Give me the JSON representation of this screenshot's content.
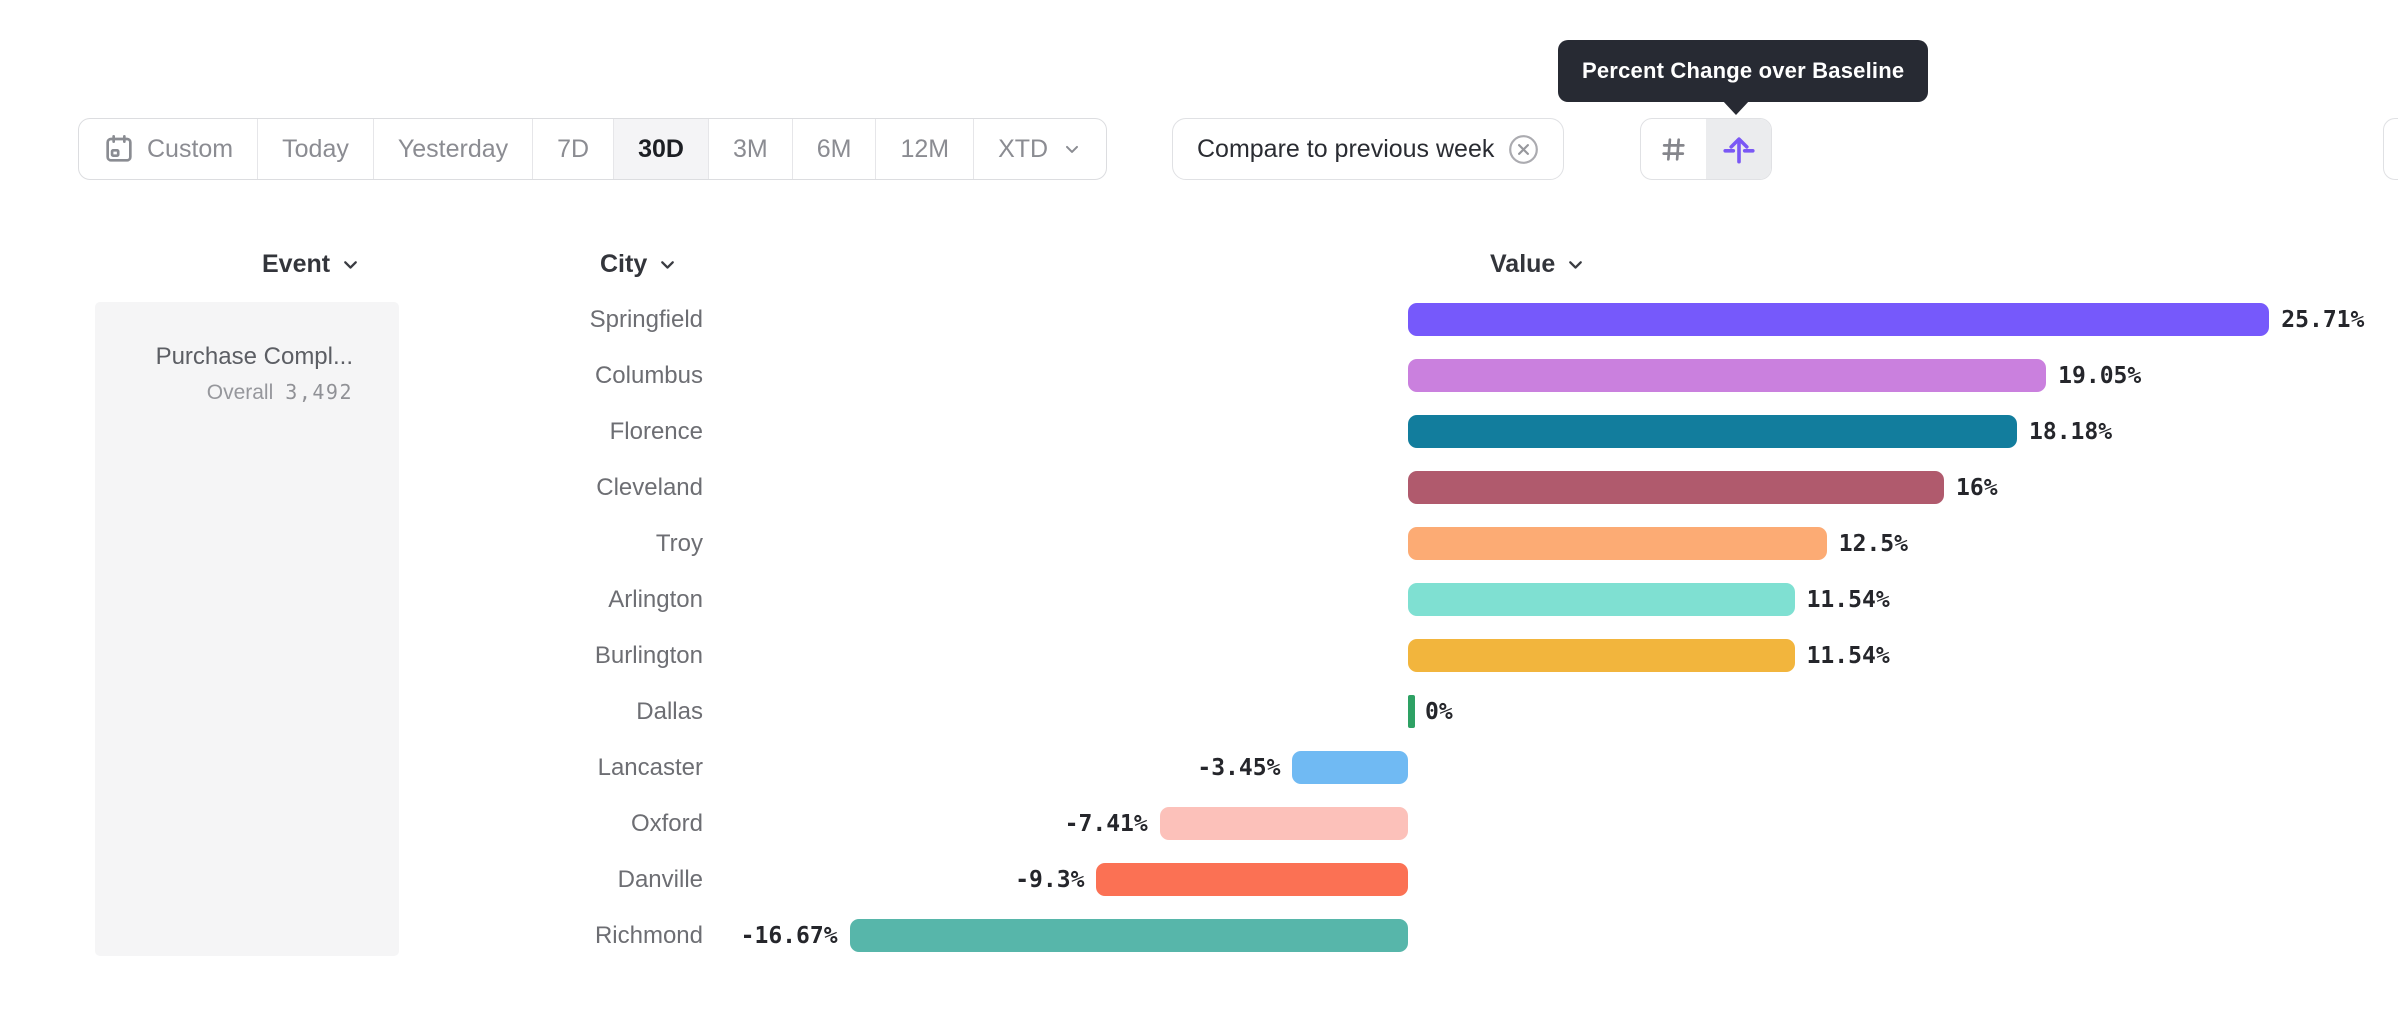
{
  "tooltip": {
    "text": "Percent Change over Baseline"
  },
  "toolbar": {
    "date_ranges": [
      {
        "label": "Custom",
        "selected": false,
        "icon": "calendar-icon"
      },
      {
        "label": "Today",
        "selected": false
      },
      {
        "label": "Yesterday",
        "selected": false
      },
      {
        "label": "7D",
        "selected": false
      },
      {
        "label": "30D",
        "selected": true
      },
      {
        "label": "3M",
        "selected": false
      },
      {
        "label": "6M",
        "selected": false
      },
      {
        "label": "12M",
        "selected": false
      },
      {
        "label": "XTD",
        "selected": false,
        "dropdown": true
      }
    ],
    "compare_label": "Compare to previous week",
    "view_toggle": {
      "options": [
        "grid-view",
        "sort-by-value"
      ],
      "active": "sort-by-value"
    }
  },
  "columns": {
    "event": "Event",
    "city": "City",
    "value": "Value"
  },
  "event_panel": {
    "title": "Purchase Compl...",
    "subtitle_label": "Overall",
    "subtitle_value": "3,492"
  },
  "chart_data": {
    "type": "bar",
    "orientation": "horizontal",
    "title": "Percent Change over Baseline",
    "unit": "percent",
    "baseline": 0,
    "xlim": [
      -16.67,
      25.71
    ],
    "grid": false,
    "categories": [
      "Springfield",
      "Columbus",
      "Florence",
      "Cleveland",
      "Troy",
      "Arlington",
      "Burlington",
      "Dallas",
      "Lancaster",
      "Oxford",
      "Danville",
      "Richmond"
    ],
    "values": [
      25.71,
      19.05,
      18.18,
      16,
      12.5,
      11.54,
      11.54,
      0,
      -3.45,
      -7.41,
      -9.3,
      -16.67
    ],
    "value_labels": [
      "25.71%",
      "19.05%",
      "18.18%",
      "16%",
      "12.5%",
      "11.54%",
      "11.54%",
      "0%",
      "-3.45%",
      "-7.41%",
      "-9.3%",
      "-16.67%"
    ],
    "bar_colors": [
      "#7659fb",
      "#ca80de",
      "#127d9d",
      "#b05a6d",
      "#fcab74",
      "#7fe0d2",
      "#f2b53d",
      "#2ea164",
      "#70baf3",
      "#fcc1ba",
      "#fb7154",
      "#57b6aa"
    ]
  },
  "colors": {
    "accent_purple": "#7a58f5",
    "tooltip_bg": "#272a33",
    "selected_segment_bg": "#f4f4f6",
    "panel_bg": "#f5f5f6",
    "border": "#e0e1e4",
    "muted_text": "#8b8c92",
    "dark_text": "#25262b"
  }
}
